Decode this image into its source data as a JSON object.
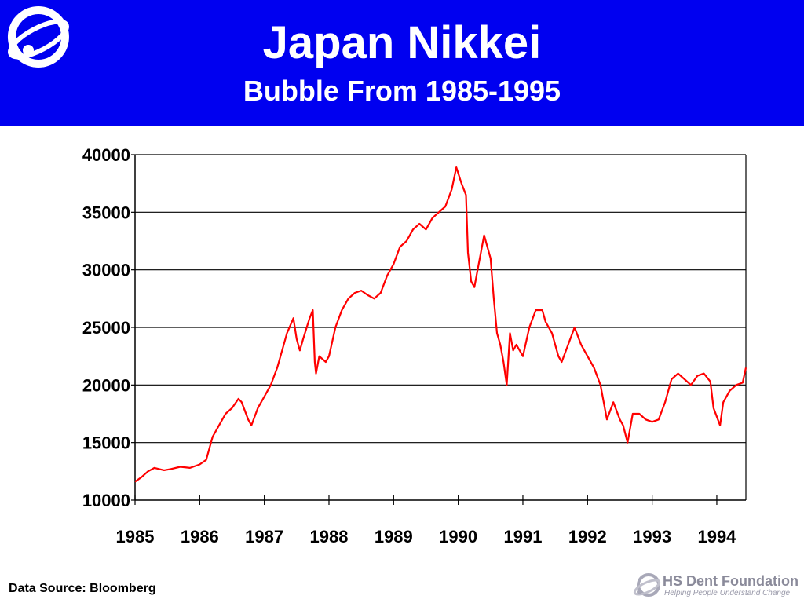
{
  "header": {
    "title": "Japan Nikkei",
    "subtitle": "Bubble From 1985-1995",
    "background_color": "#0000f0",
    "logo_icon": "orbit-logo-icon"
  },
  "footer": {
    "source": "Data Source: Bloomberg",
    "brand": "HS Dent Foundation",
    "tagline": "Helping People Understand Change",
    "brand_icon": "orbit-logo-icon"
  },
  "chart_data": {
    "type": "line",
    "title": "",
    "xlabel": "",
    "ylabel": "",
    "xlim": [
      1985,
      1994.45
    ],
    "ylim": [
      10000,
      40000
    ],
    "y_ticks": [
      10000,
      15000,
      20000,
      25000,
      30000,
      35000,
      40000
    ],
    "x_ticks": [
      1985,
      1986,
      1987,
      1988,
      1989,
      1990,
      1991,
      1992,
      1993,
      1994
    ],
    "x_tick_labels": [
      "1985",
      "1986",
      "1987",
      "1988",
      "1989",
      "1990",
      "1991",
      "1992",
      "1993",
      "1994"
    ],
    "grid": "horizontal",
    "line_color": "#ff0000",
    "series": [
      {
        "name": "",
        "x": [
          1985.0,
          1985.1,
          1985.2,
          1985.3,
          1985.45,
          1985.55,
          1985.7,
          1985.85,
          1986.0,
          1986.1,
          1986.2,
          1986.25,
          1986.3,
          1986.4,
          1986.5,
          1986.6,
          1986.65,
          1986.75,
          1986.8,
          1986.9,
          1987.0,
          1987.1,
          1987.2,
          1987.3,
          1987.35,
          1987.45,
          1987.5,
          1987.55,
          1987.6,
          1987.7,
          1987.75,
          1987.78,
          1987.8,
          1987.85,
          1987.95,
          1988.0,
          1988.1,
          1988.2,
          1988.3,
          1988.4,
          1988.5,
          1988.6,
          1988.7,
          1988.8,
          1988.9,
          1989.0,
          1989.1,
          1989.2,
          1989.3,
          1989.4,
          1989.5,
          1989.6,
          1989.7,
          1989.8,
          1989.9,
          1989.97,
          1990.05,
          1990.12,
          1990.15,
          1990.2,
          1990.25,
          1990.3,
          1990.4,
          1990.5,
          1990.55,
          1990.6,
          1990.65,
          1990.7,
          1990.75,
          1990.8,
          1990.85,
          1990.9,
          1991.0,
          1991.1,
          1991.2,
          1991.3,
          1991.35,
          1991.45,
          1991.55,
          1991.6,
          1991.7,
          1991.8,
          1991.9,
          1992.0,
          1992.1,
          1992.2,
          1992.3,
          1992.4,
          1992.5,
          1992.55,
          1992.62,
          1992.7,
          1992.8,
          1992.9,
          1993.0,
          1993.1,
          1993.2,
          1993.3,
          1993.4,
          1993.5,
          1993.6,
          1993.7,
          1993.8,
          1993.9,
          1993.95,
          1994.05,
          1994.1,
          1994.2,
          1994.3,
          1994.4,
          1994.45
        ],
        "y": [
          11600,
          12000,
          12500,
          12800,
          12600,
          12700,
          12900,
          12800,
          13100,
          13500,
          15500,
          16000,
          16500,
          17500,
          18000,
          18800,
          18500,
          17000,
          16500,
          18000,
          19000,
          20000,
          21500,
          23500,
          24500,
          25800,
          24000,
          23000,
          24000,
          25800,
          26500,
          22000,
          21000,
          22500,
          22000,
          22500,
          25000,
          26500,
          27500,
          28000,
          28200,
          27800,
          27500,
          28000,
          29500,
          30500,
          32000,
          32500,
          33500,
          34000,
          33500,
          34500,
          35000,
          35500,
          37000,
          38900,
          37500,
          36500,
          31500,
          29000,
          28500,
          30000,
          33000,
          31000,
          27500,
          24500,
          23500,
          22000,
          20000,
          24500,
          23000,
          23500,
          22500,
          25000,
          26500,
          26500,
          25500,
          24500,
          22500,
          22000,
          23500,
          25000,
          23500,
          22500,
          21500,
          20000,
          17000,
          18500,
          17000,
          16500,
          15000,
          17500,
          17500,
          17000,
          16800,
          17000,
          18500,
          20500,
          21000,
          20500,
          20000,
          20800,
          21000,
          20300,
          18000,
          16500,
          18500,
          19500,
          20000,
          20200,
          21500
        ]
      }
    ]
  }
}
